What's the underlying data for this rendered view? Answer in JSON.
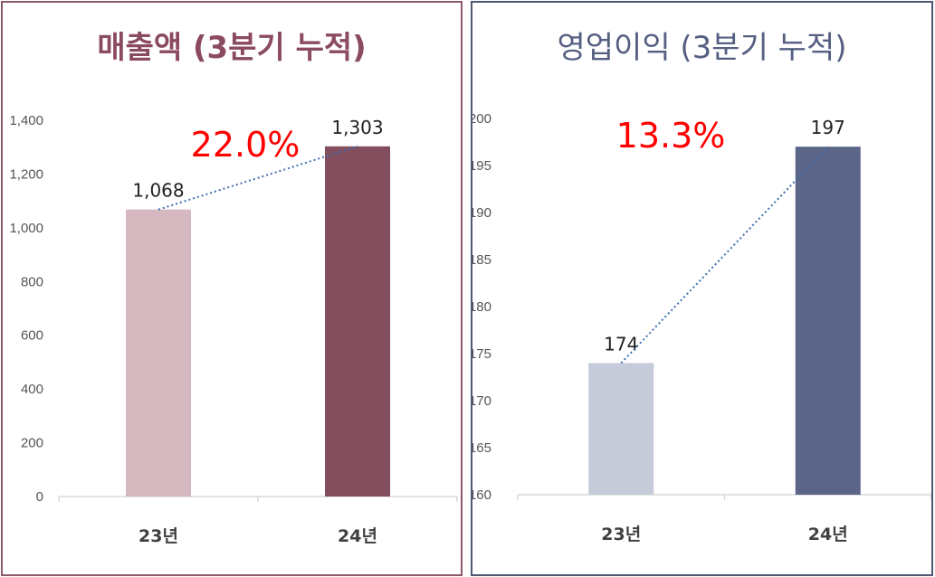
{
  "chart_data": [
    {
      "type": "bar",
      "title": "매출액 (3분기 누적)",
      "categories": [
        "23년",
        "24년"
      ],
      "values": [
        1068,
        1303
      ],
      "data_labels": [
        "1,068",
        "1,303"
      ],
      "ylim": [
        0,
        1400
      ],
      "yticks": [
        0,
        200,
        400,
        600,
        800,
        1000,
        1200,
        1400
      ],
      "ytick_labels": [
        "0",
        "200",
        "400",
        "600",
        "800",
        "1,000",
        "1,200",
        "1,400"
      ],
      "growth_label": "22.0%",
      "colors": [
        "#d6b8c1",
        "#834e5e"
      ],
      "accent": "#8b4b5e",
      "trend_line": "dotted",
      "grid": false
    },
    {
      "type": "bar",
      "title": "영업이익 (3분기 누적)",
      "categories": [
        "23년",
        "24년"
      ],
      "values": [
        174,
        197
      ],
      "data_labels": [
        "174",
        "197"
      ],
      "ylim": [
        160,
        200
      ],
      "yticks": [
        160,
        165,
        170,
        175,
        180,
        185,
        190,
        195,
        200
      ],
      "ytick_labels": [
        "160",
        "165",
        "170",
        "175",
        "180",
        "185",
        "190",
        "195",
        "200"
      ],
      "growth_label": "13.3%",
      "colors": [
        "#c6cbda",
        "#5b6588"
      ],
      "accent": "#555f82",
      "trend_line": "dotted",
      "grid": false
    }
  ]
}
